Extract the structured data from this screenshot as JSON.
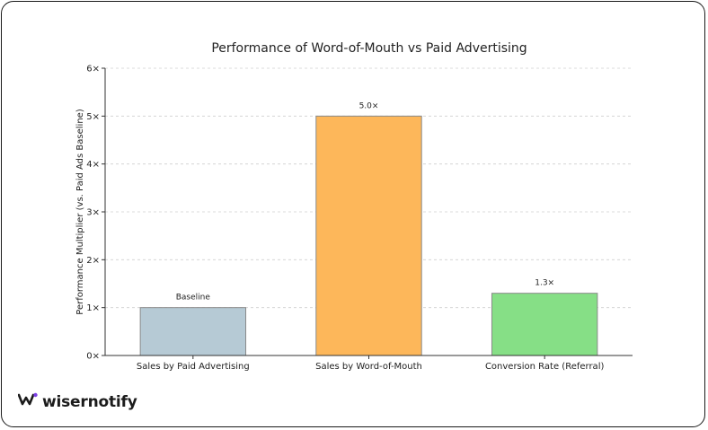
{
  "brand": {
    "name": "wisernotify",
    "logo_icon": "wisernotify-logo-icon"
  },
  "chart_data": {
    "type": "bar",
    "title": "Performance of Word-of-Mouth vs Paid Advertising",
    "xlabel": "",
    "ylabel": "Performance Multiplier (vs. Paid Ads Baseline)",
    "categories": [
      "Sales by Paid Advertising",
      "Sales by Word-of-Mouth",
      "Conversion Rate (Referral)"
    ],
    "values": [
      1.0,
      5.0,
      1.3
    ],
    "data_labels": [
      "Baseline",
      "5.0×",
      "1.3×"
    ],
    "colors": [
      "#b6cad5",
      "#fdb75a",
      "#86df86"
    ],
    "ylim": [
      0,
      6
    ],
    "yticks": [
      0,
      1,
      2,
      3,
      4,
      5,
      6
    ],
    "ytick_labels": [
      "0×",
      "1×",
      "2×",
      "3×",
      "4×",
      "5×",
      "6×"
    ],
    "grid": "horizontal-dashed"
  }
}
